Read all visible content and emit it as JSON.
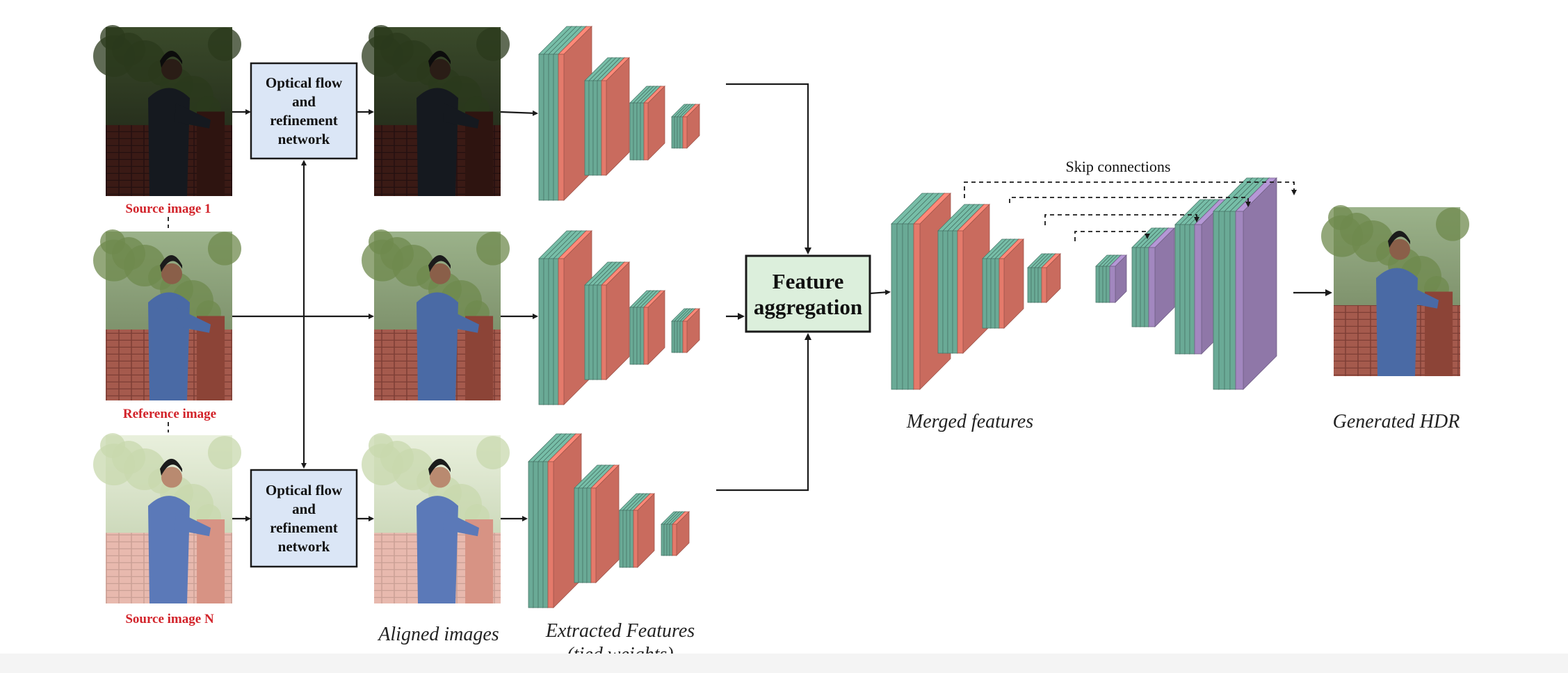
{
  "inputs": {
    "source_1": "Source image 1",
    "reference": "Reference image",
    "source_n": "Source image N"
  },
  "flow_box_top": [
    "Optical flow",
    "and",
    "refinement",
    "network"
  ],
  "flow_box_bottom": [
    "Optical flow",
    "and",
    "refinement",
    "network"
  ],
  "aggregation": [
    "Feature",
    "aggregation"
  ],
  "captions": {
    "aligned": "Aligned images",
    "extracted_1": "Extracted Features",
    "extracted_2": "(tied weights)",
    "merged": "Merged features",
    "generated": "Generated HDR",
    "skip": "Skip connections"
  },
  "colors": {
    "teal": "#6aaa96",
    "salmon": "#e47a6b",
    "purple": "#a287bf",
    "box_blue": "#dbe6f6",
    "box_green": "#dcefdc"
  },
  "icons": {
    "person_dark": "person-photo-dark",
    "person_normal": "person-photo-normal",
    "person_bright": "person-photo-bright"
  }
}
